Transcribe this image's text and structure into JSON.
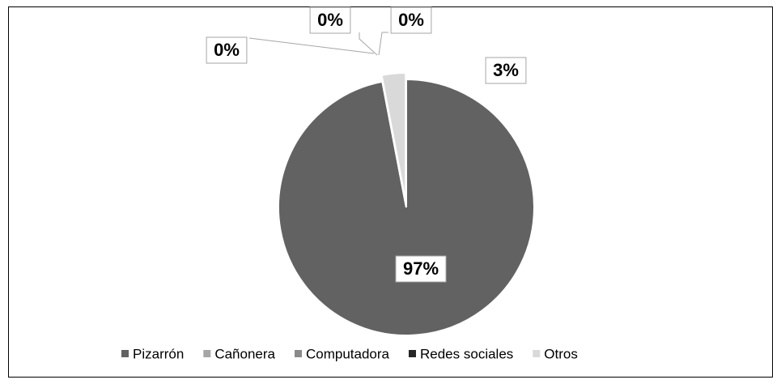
{
  "chart_data": {
    "type": "pie",
    "categories": [
      "Pizarrón",
      "Cañonera",
      "Computadora",
      "Redes sociales",
      "Otros"
    ],
    "values": [
      97,
      0,
      0,
      0,
      3
    ],
    "value_labels": [
      "97%",
      "0%",
      "0%",
      "0%",
      "3%"
    ],
    "colors": [
      "#626262",
      "#a6a6a6",
      "#8a8a8a",
      "#262626",
      "#d9d9d9"
    ],
    "legend": "bottom"
  }
}
